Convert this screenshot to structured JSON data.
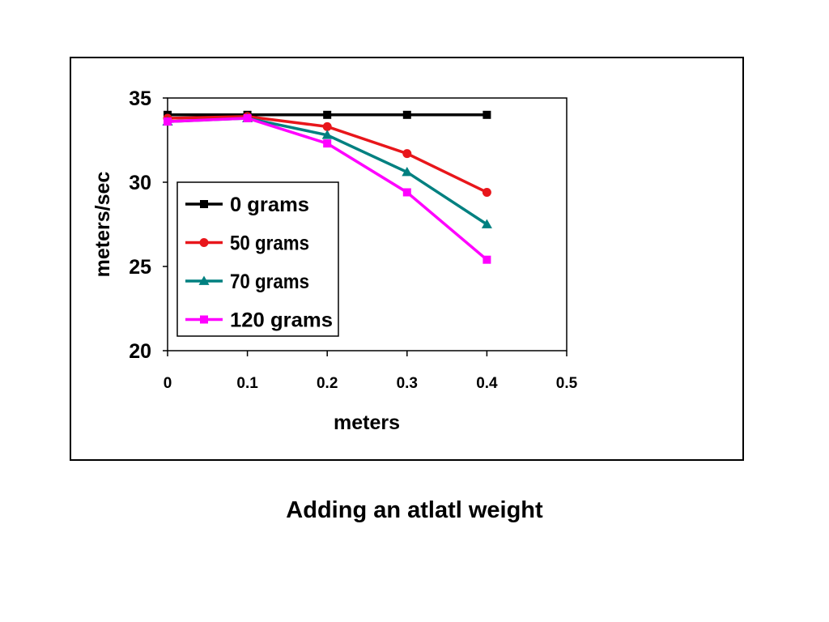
{
  "caption": "Adding an atlatl weight",
  "chart_data": {
    "type": "line",
    "title": "",
    "xlabel": "meters",
    "ylabel": "meters/sec",
    "xlim": [
      0,
      0.5
    ],
    "ylim": [
      20,
      35
    ],
    "xticks": [
      0,
      0.1,
      0.2,
      0.3,
      0.4,
      0.5
    ],
    "xtick_labels": [
      "0",
      "0.1",
      "0.2",
      "0.3",
      "0.4",
      "0.5"
    ],
    "yticks": [
      20,
      25,
      30,
      35
    ],
    "ytick_labels": [
      "20",
      "25",
      "30",
      "35"
    ],
    "grid": false,
    "legend_position": "inside-left",
    "series": [
      {
        "name": "0 grams",
        "color": "#000000",
        "marker": "square",
        "x": [
          0,
          0.1,
          0.2,
          0.3,
          0.4
        ],
        "y": [
          34.0,
          34.0,
          34.0,
          34.0,
          34.0
        ]
      },
      {
        "name": "50 grams",
        "color": "#e8161b",
        "marker": "circle",
        "x": [
          0,
          0.1,
          0.2,
          0.3,
          0.4
        ],
        "y": [
          33.8,
          33.9,
          33.3,
          31.7,
          29.4
        ]
      },
      {
        "name": "70 grams",
        "color": "#008080",
        "marker": "triangle",
        "x": [
          0,
          0.1,
          0.2,
          0.3,
          0.4
        ],
        "y": [
          33.6,
          33.8,
          32.8,
          30.6,
          27.5
        ]
      },
      {
        "name": "120 grams",
        "color": "#ff00ff",
        "marker": "square",
        "x": [
          0,
          0.1,
          0.2,
          0.3,
          0.4
        ],
        "y": [
          33.6,
          33.8,
          32.3,
          29.4,
          25.4
        ]
      }
    ]
  }
}
